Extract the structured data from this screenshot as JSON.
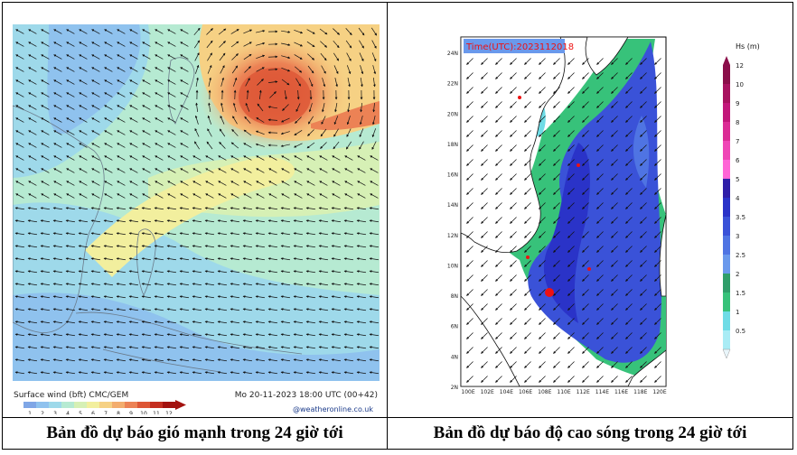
{
  "left_panel": {
    "footer_left": "Surface wind (bft)   CMC/GEM",
    "footer_right": "Mo 20-11-2023 18:00 UTC (00+42)",
    "credit": "@weatheronline.co.uk",
    "scale_labels": [
      "1",
      "2",
      "3",
      "4",
      "5",
      "6",
      "7",
      "8",
      "9",
      "10",
      "11",
      "12"
    ],
    "scale_colors": [
      "#7fa6e6",
      "#8fc2ee",
      "#9ed9ea",
      "#b6ead2",
      "#d6f0b5",
      "#f2ef9e",
      "#f6d184",
      "#f3ad6e",
      "#ec8255",
      "#dd5636",
      "#c42e20",
      "#a3120f"
    ],
    "caption": "Bản đồ dự báo gió mạnh trong 24 giờ tới"
  },
  "right_panel": {
    "time_label": "Time(UTC):2023112018",
    "legend_title": "Hs (m)",
    "legend_labels": [
      "12",
      "10",
      "9",
      "8",
      "7",
      "6",
      "5",
      "4",
      "3.5",
      "3",
      "2.5",
      "2",
      "1.5",
      "1",
      "0.5"
    ],
    "legend_colors": [
      "#8b0e4a",
      "#a8125f",
      "#c2177a",
      "#db2c95",
      "#ef46b6",
      "#ff66d6",
      "#2f1fa8",
      "#2a33c8",
      "#3a52d8",
      "#4f74e3",
      "#6a99ec",
      "#2f9e6a",
      "#37c27a",
      "#6fdce6",
      "#a9ecf5"
    ],
    "lat_labels": [
      "24N",
      "22N",
      "20N",
      "18N",
      "16N",
      "14N",
      "12N",
      "10N",
      "8N",
      "6N",
      "4N",
      "2N"
    ],
    "lon_labels": [
      "100E",
      "102E",
      "104E",
      "106E",
      "108E",
      "110E",
      "112E",
      "114E",
      "116E",
      "118E",
      "120E"
    ],
    "caption": "Bản đồ dự báo độ cao sóng trong 24 giờ tới"
  }
}
